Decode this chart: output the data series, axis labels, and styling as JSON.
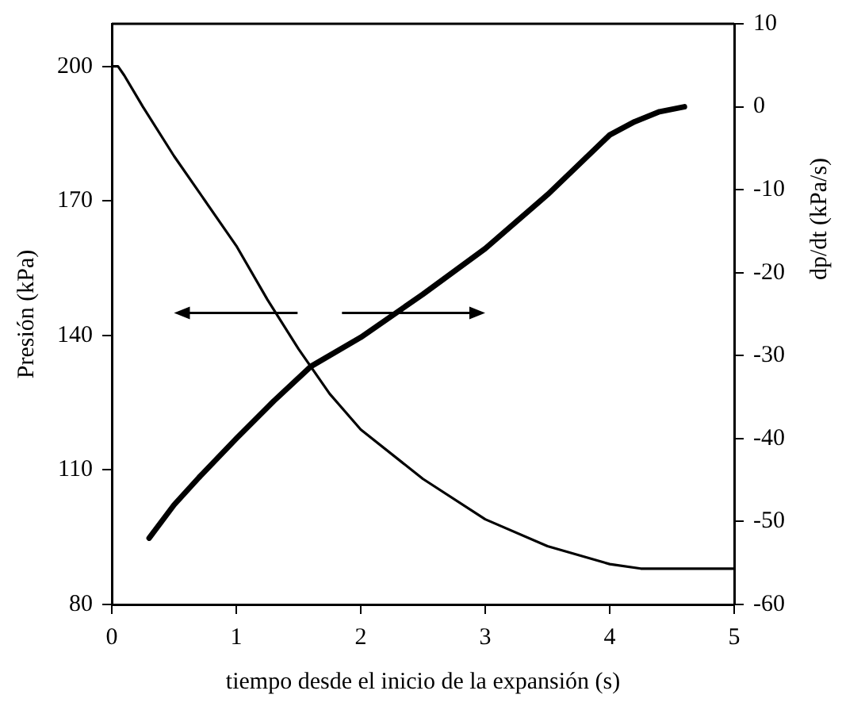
{
  "chart_data": {
    "type": "line",
    "xlabel": "tiempo desde el inicio de la expansión (s)",
    "ylabel": "Presión (kPa)",
    "y2label": "dp/dt (kPa/s)",
    "xlim": [
      0,
      5
    ],
    "xticks": [
      0,
      1,
      2,
      3,
      4,
      5
    ],
    "ylim": [
      80,
      209.5
    ],
    "yticks": [
      80,
      110,
      140,
      170,
      200
    ],
    "y2lim": [
      -60,
      10
    ],
    "y2ticks": [
      -60,
      -50,
      -40,
      -30,
      -20,
      -10,
      0,
      10
    ],
    "grid": false,
    "legend": false,
    "marker": "none",
    "line_style": "solid",
    "series": [
      {
        "color": "#000000",
        "x": [
          0,
          0.05,
          0.1,
          0.25,
          0.5,
          0.75,
          1,
          1.25,
          1.5,
          1.75,
          2,
          2.5,
          3,
          3.5,
          4,
          4.25,
          4.5,
          5
        ],
        "values": [
          200,
          200,
          198,
          191,
          180,
          170,
          160,
          148,
          137,
          127,
          119,
          108,
          99,
          93,
          89,
          88,
          88,
          88
        ]
      },
      {
        "color": "#000000",
        "axis": "y2",
        "x": [
          0.3,
          0.5,
          0.7,
          1,
          1.3,
          1.6,
          2,
          2.5,
          3,
          3.5,
          4,
          4.2,
          4.4,
          4.6
        ],
        "values": [
          -52,
          -48,
          -44.7,
          -40,
          -35.5,
          -31.3,
          -27.8,
          -22.6,
          -17.1,
          -10.6,
          -3.4,
          -1.8,
          -0.6,
          0
        ]
      }
    ]
  }
}
